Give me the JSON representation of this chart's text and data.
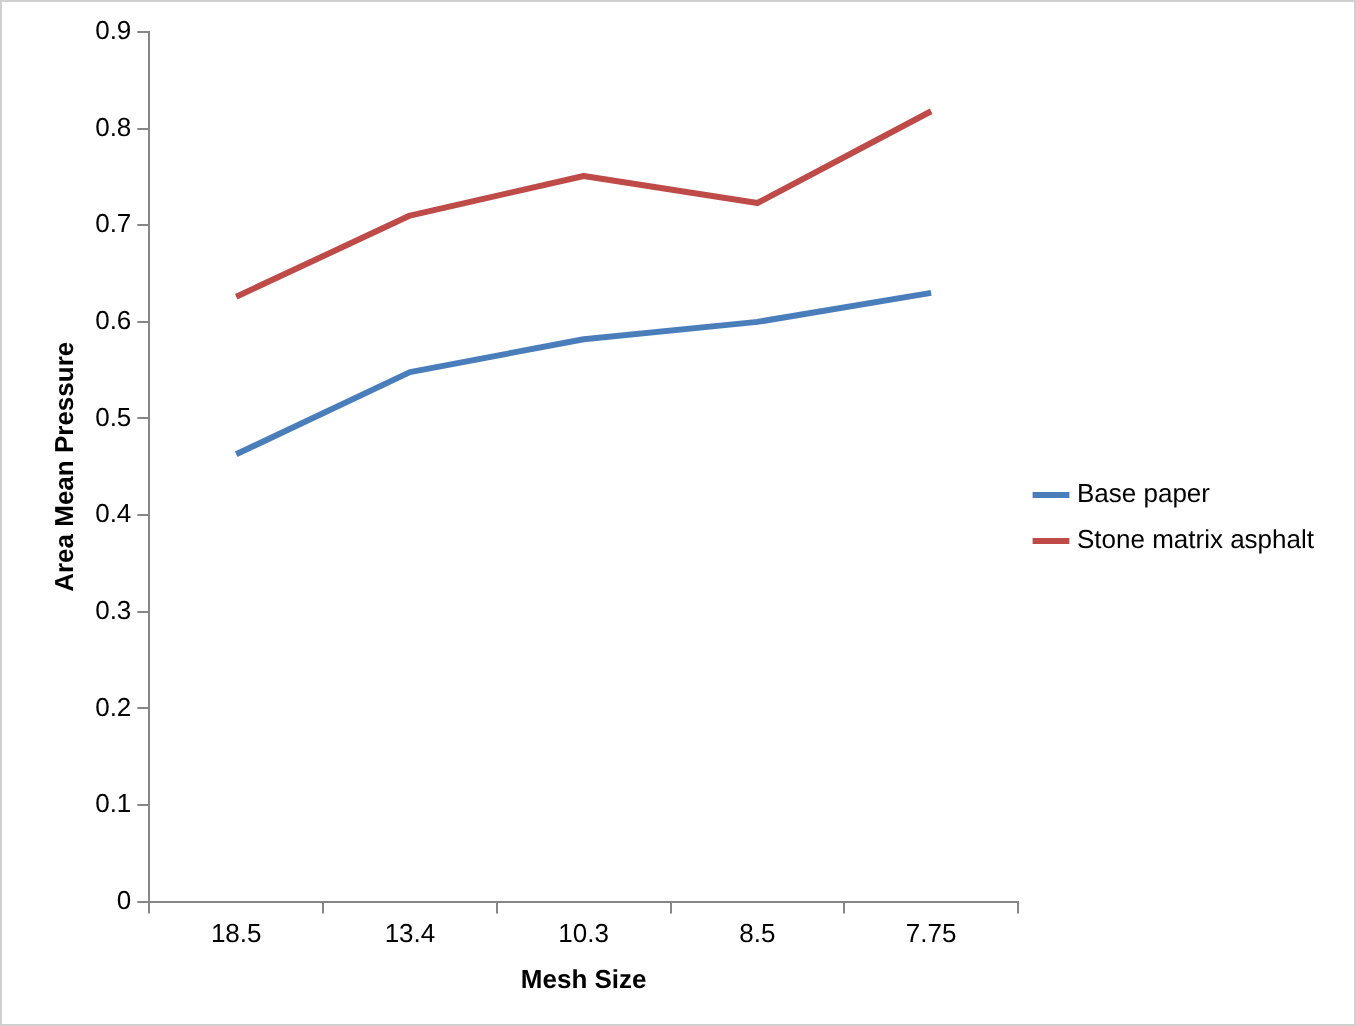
{
  "chart_data": {
    "type": "line",
    "xlabel": "Mesh Size",
    "ylabel": "Area Mean Pressure",
    "categories": [
      "18.5",
      "13.4",
      "10.3",
      "8.5",
      "7.75"
    ],
    "series": [
      {
        "name": "Base paper",
        "color": "#4a7ebb",
        "values": [
          0.463,
          0.548,
          0.582,
          0.6,
          0.63
        ]
      },
      {
        "name": "Stone matrix asphalt",
        "color": "#be4b48",
        "values": [
          0.626,
          0.71,
          0.751,
          0.723,
          0.818
        ]
      }
    ],
    "ylim": [
      0,
      0.9
    ],
    "yticks": [
      0,
      0.1,
      0.2,
      0.3,
      0.4,
      0.5,
      0.6,
      0.7,
      0.8,
      0.9
    ],
    "grid": false,
    "legend": "right",
    "marker": "none",
    "line_style": "solid"
  }
}
